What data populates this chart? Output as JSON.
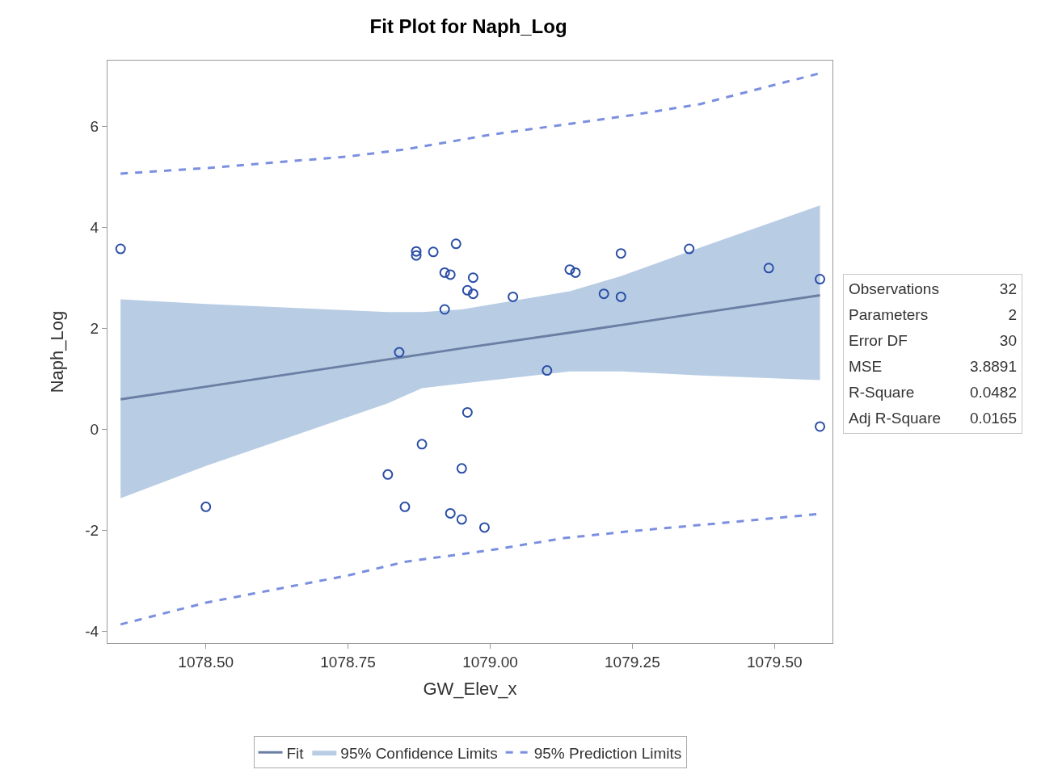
{
  "chart_data": {
    "type": "scatter",
    "title": "Fit Plot for Naph_Log",
    "xlabel": "GW_Elev_x",
    "ylabel": "Naph_Log",
    "xlim": [
      1078.327,
      1079.602
    ],
    "xticks": [
      {
        "value": 1078.5,
        "label": "1078.50"
      },
      {
        "value": 1078.75,
        "label": "1078.75"
      },
      {
        "value": 1079,
        "label": "1079.00"
      },
      {
        "value": 1079.25,
        "label": "1079.25"
      },
      {
        "value": 1079.5,
        "label": "1079.50"
      }
    ],
    "ylim": [
      -4.24,
      7.3
    ],
    "yticks": [
      -4,
      -2,
      0,
      2,
      4,
      6
    ],
    "grid": false,
    "legend": "bottom",
    "marker": "circle",
    "series": [
      {
        "type": "line",
        "name": "Fit",
        "color": "#6a7fa3",
        "line_style": "solid",
        "marker": "none",
        "x": [
          1078.35,
          1078.5,
          1078.82,
          1078.88,
          1078.95,
          1079.14,
          1079.23,
          1079.37,
          1079.58
        ],
        "values": [
          0.59,
          0.84,
          1.38,
          1.48,
          1.6,
          1.91,
          2.06,
          2.3,
          2.65
        ],
        "lower": [
          -1.37,
          -0.73,
          0.51,
          0.81,
          0.9,
          1.14,
          1.14,
          1.06,
          0.97
        ],
        "upper": [
          2.57,
          2.48,
          2.32,
          2.32,
          2.37,
          2.73,
          3.03,
          3.6,
          4.43
        ]
      },
      {
        "type": "area",
        "name": "95% Confidence Limits",
        "color": "#b8cde4",
        "marker": "none"
      },
      {
        "type": "line",
        "name": "95% Prediction Limits",
        "color": "#7b8fe0",
        "line_style": "dashed",
        "marker": "none",
        "x": [
          1078.35,
          1078.5,
          1078.75,
          1078.85,
          1079.0,
          1079.25,
          1079.37,
          1079.58
        ],
        "values": [
          5.06,
          5.17,
          5.4,
          5.54,
          5.83,
          6.22,
          6.44,
          7.05
        ]
      },
      {
        "type": "line",
        "color": "#7b8fe0",
        "line_style": "dashed",
        "marker": "none",
        "x": [
          1078.35,
          1078.5,
          1078.75,
          1078.85,
          1079.0,
          1079.13,
          1079.25,
          1079.37,
          1079.58
        ],
        "values": [
          -3.87,
          -3.44,
          -2.9,
          -2.63,
          -2.4,
          -2.16,
          -2.02,
          -1.9,
          -1.68
        ]
      },
      {
        "color": "#2a4ea6",
        "x": [
          1078.35,
          1078.5,
          1078.84,
          1078.82,
          1078.85,
          1078.87,
          1078.87,
          1078.88,
          1078.9,
          1078.92,
          1078.92,
          1078.93,
          1078.93,
          1078.94,
          1078.95,
          1078.95,
          1078.96,
          1078.96,
          1078.97,
          1078.97,
          1078.99,
          1079.04,
          1079.1,
          1079.14,
          1079.15,
          1079.2,
          1079.23,
          1079.23,
          1079.35,
          1079.49,
          1079.58,
          1079.58
        ],
        "values": [
          3.57,
          -1.54,
          1.52,
          -0.9,
          -1.54,
          3.52,
          3.44,
          -0.3,
          3.51,
          2.37,
          3.1,
          3.06,
          -1.67,
          3.67,
          -0.78,
          -1.79,
          2.75,
          0.33,
          3.0,
          2.68,
          -1.95,
          2.62,
          1.16,
          3.16,
          3.1,
          2.68,
          3.48,
          2.62,
          3.57,
          3.19,
          2.97,
          0.05
        ]
      }
    ],
    "annotations": [
      "Observations",
      "32",
      "Parameters",
      "2",
      "Error DF",
      "30",
      "MSE",
      "3.8891",
      "R-Square",
      "0.0482",
      "Adj R-Square",
      "0.0165"
    ]
  }
}
